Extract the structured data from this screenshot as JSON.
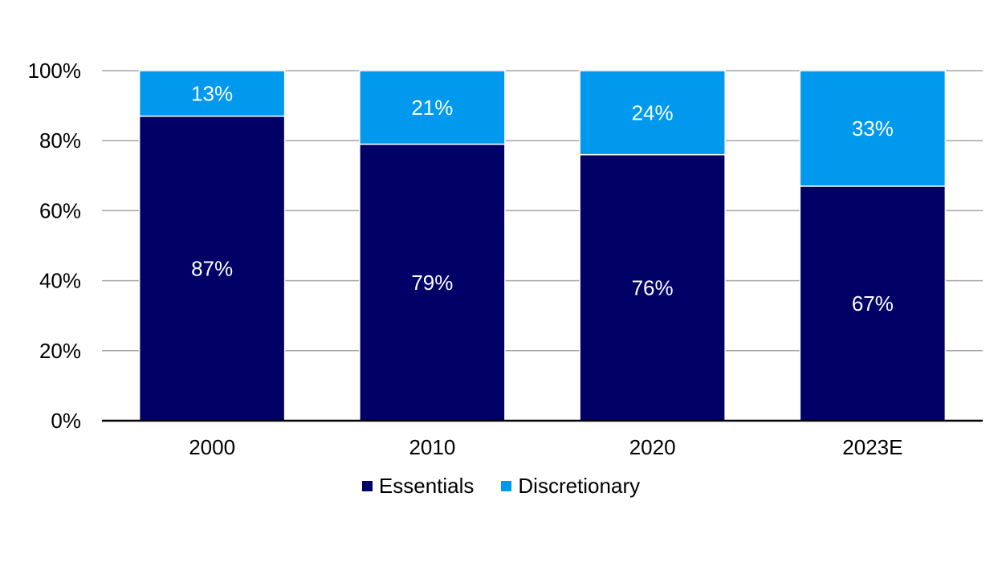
{
  "chart_data": {
    "type": "bar",
    "stacked": true,
    "categories": [
      "2000",
      "2010",
      "2020",
      "2023E"
    ],
    "series": [
      {
        "name": "Essentials",
        "values": [
          87,
          79,
          76,
          67
        ],
        "labels": [
          "87%",
          "79%",
          "76%",
          "67%"
        ],
        "color": "#000066"
      },
      {
        "name": "Discretionary",
        "values": [
          13,
          21,
          24,
          33
        ],
        "labels": [
          "13%",
          "21%",
          "24%",
          "33%"
        ],
        "color": "#0099ee"
      }
    ],
    "ylim": [
      0,
      100
    ],
    "yticks": [
      0,
      20,
      40,
      60,
      80,
      100
    ],
    "ytick_labels": [
      "0%",
      "20%",
      "40%",
      "60%",
      "80%",
      "100%"
    ],
    "grid": true,
    "legend": "bottom"
  }
}
